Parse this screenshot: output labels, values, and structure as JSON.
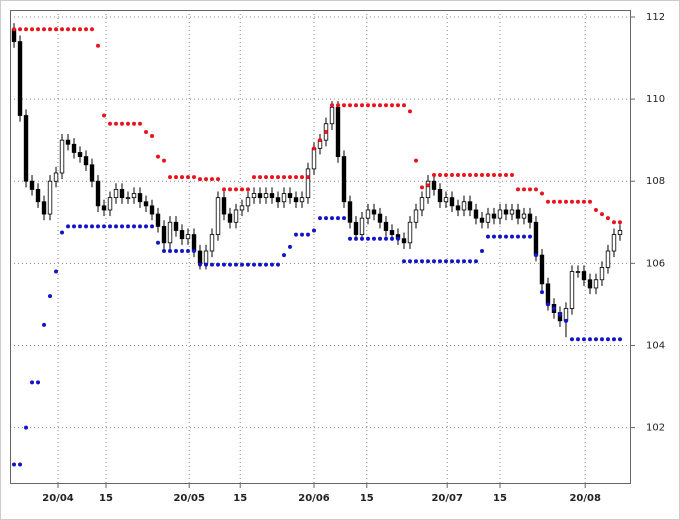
{
  "chart_data": {
    "type": "candlestick",
    "open": [
      111.7,
      111.4,
      109.6,
      108.0,
      107.8,
      107.5,
      107.2,
      108.0,
      108.2,
      109.0,
      108.9,
      108.7,
      108.6,
      108.4,
      108.0,
      107.4,
      107.3,
      107.6,
      107.8,
      107.6,
      107.6,
      107.7,
      107.5,
      107.4,
      107.2,
      106.9,
      106.5,
      107.0,
      106.8,
      106.6,
      106.7,
      106.3,
      106.0,
      106.3,
      106.7,
      107.6,
      107.2,
      107.0,
      107.3,
      107.4,
      107.6,
      107.7,
      107.6,
      107.7,
      107.6,
      107.5,
      107.7,
      107.6,
      107.5,
      107.6,
      108.3,
      108.8,
      109.0,
      109.4,
      109.8,
      108.6,
      107.5,
      107.0,
      106.7,
      107.1,
      107.3,
      107.2,
      107.0,
      106.8,
      106.7,
      106.6,
      106.5,
      107.0,
      107.3,
      107.6,
      108.0,
      107.8,
      107.5,
      107.6,
      107.4,
      107.3,
      107.5,
      107.3,
      107.1,
      107.0,
      107.2,
      107.1,
      107.3,
      107.2,
      107.3,
      107.1,
      107.2,
      107.0,
      106.2,
      105.5,
      105.0,
      104.8,
      104.6,
      104.9,
      105.8,
      105.8,
      105.6,
      105.4,
      105.6,
      105.9,
      106.3,
      106.7
    ],
    "high": [
      111.85,
      111.55,
      109.75,
      108.15,
      107.95,
      107.65,
      108.15,
      108.35,
      109.15,
      109.15,
      109.05,
      108.85,
      108.75,
      108.55,
      108.15,
      107.55,
      107.75,
      107.95,
      107.95,
      107.75,
      107.85,
      107.85,
      107.65,
      107.55,
      107.35,
      107.05,
      107.15,
      107.15,
      106.95,
      106.85,
      106.85,
      106.45,
      106.45,
      106.85,
      107.75,
      107.75,
      107.35,
      107.45,
      107.55,
      107.75,
      107.85,
      107.85,
      107.85,
      107.85,
      107.75,
      107.85,
      107.85,
      107.75,
      107.75,
      108.45,
      108.95,
      109.15,
      109.55,
      109.95,
      109.95,
      108.75,
      107.65,
      107.15,
      107.25,
      107.45,
      107.45,
      107.35,
      107.15,
      106.95,
      106.85,
      106.75,
      107.15,
      107.45,
      107.75,
      108.15,
      108.15,
      107.95,
      107.75,
      107.75,
      107.55,
      107.65,
      107.65,
      107.45,
      107.25,
      107.35,
      107.35,
      107.45,
      107.45,
      107.45,
      107.45,
      107.35,
      107.35,
      107.15,
      106.35,
      105.65,
      105.15,
      104.95,
      105.05,
      105.95,
      105.95,
      105.95,
      105.75,
      105.75,
      106.05,
      106.45,
      106.85,
      106.95
    ],
    "low": [
      111.25,
      109.45,
      107.85,
      107.65,
      107.35,
      107.05,
      107.05,
      107.85,
      108.05,
      108.75,
      108.55,
      108.45,
      108.25,
      107.85,
      107.25,
      107.15,
      107.15,
      107.45,
      107.45,
      107.45,
      107.45,
      107.35,
      107.25,
      107.05,
      106.75,
      106.35,
      106.35,
      106.65,
      106.45,
      106.45,
      106.15,
      105.85,
      105.85,
      106.15,
      106.55,
      107.05,
      106.85,
      106.85,
      107.15,
      107.25,
      107.45,
      107.45,
      107.45,
      107.45,
      107.35,
      107.35,
      107.45,
      107.35,
      107.35,
      107.45,
      108.15,
      108.65,
      108.85,
      109.25,
      108.45,
      107.35,
      106.85,
      106.55,
      106.55,
      106.95,
      107.05,
      106.85,
      106.65,
      106.55,
      106.45,
      106.35,
      106.35,
      106.85,
      107.15,
      107.45,
      107.65,
      107.35,
      107.35,
      107.25,
      107.15,
      107.15,
      107.15,
      106.95,
      106.85,
      106.85,
      106.95,
      106.95,
      107.05,
      107.05,
      106.95,
      106.95,
      106.85,
      106.05,
      105.35,
      104.85,
      104.65,
      104.45,
      104.2,
      104.75,
      105.65,
      105.45,
      105.25,
      105.25,
      105.45,
      105.75,
      106.15,
      106.55
    ],
    "close": [
      111.4,
      109.6,
      108.0,
      107.8,
      107.5,
      107.2,
      108.0,
      108.2,
      109.0,
      108.9,
      108.7,
      108.6,
      108.4,
      108.0,
      107.4,
      107.3,
      107.6,
      107.8,
      107.6,
      107.6,
      107.7,
      107.5,
      107.4,
      107.2,
      106.9,
      106.5,
      107.0,
      106.8,
      106.6,
      106.7,
      106.3,
      106.0,
      106.3,
      106.7,
      107.6,
      107.2,
      107.0,
      107.3,
      107.4,
      107.6,
      107.7,
      107.6,
      107.7,
      107.6,
      107.5,
      107.7,
      107.6,
      107.5,
      107.6,
      108.3,
      108.8,
      109.0,
      109.4,
      109.8,
      108.6,
      107.5,
      107.0,
      106.7,
      107.1,
      107.3,
      107.2,
      107.0,
      106.8,
      106.7,
      106.6,
      106.5,
      107.0,
      107.3,
      107.6,
      108.0,
      107.8,
      107.5,
      107.6,
      107.4,
      107.3,
      107.5,
      107.3,
      107.1,
      107.0,
      107.2,
      107.1,
      107.3,
      107.2,
      107.3,
      107.1,
      107.2,
      107.0,
      106.2,
      105.5,
      105.0,
      104.8,
      104.6,
      104.9,
      105.8,
      105.8,
      105.6,
      105.4,
      105.6,
      105.9,
      106.3,
      106.7,
      106.8
    ],
    "series": [
      {
        "color": "#e8141e",
        "values": [
          111.7,
          111.7,
          111.7,
          111.7,
          111.7,
          111.7,
          111.7,
          111.7,
          111.7,
          111.7,
          111.7,
          111.7,
          111.7,
          111.7,
          111.3,
          109.6,
          109.4,
          109.4,
          109.4,
          109.4,
          109.4,
          109.4,
          109.2,
          109.1,
          108.6,
          108.5,
          108.1,
          108.1,
          108.1,
          108.1,
          108.1,
          108.05,
          108.05,
          108.05,
          108.05,
          107.8,
          107.8,
          107.8,
          107.8,
          107.8,
          108.1,
          108.1,
          108.1,
          108.1,
          108.1,
          108.1,
          108.1,
          108.1,
          108.1,
          108.1,
          108.8,
          109.0,
          109.2,
          109.85,
          109.85,
          109.85,
          109.85,
          109.85,
          109.85,
          109.85,
          109.85,
          109.85,
          109.85,
          109.85,
          109.85,
          109.85,
          109.7,
          108.5,
          107.85,
          107.9,
          108.15,
          108.15,
          108.15,
          108.15,
          108.15,
          108.15,
          108.15,
          108.15,
          108.15,
          108.15,
          108.15,
          108.15,
          108.15,
          108.15,
          107.8,
          107.8,
          107.8,
          107.8,
          107.7,
          107.5,
          107.5,
          107.5,
          107.5,
          107.5,
          107.5,
          107.5,
          107.5,
          107.3,
          107.2,
          107.1,
          107.0,
          107.0
        ]
      },
      {
        "color": "#1414c8",
        "values": [
          101.1,
          101.1,
          102.0,
          103.1,
          103.1,
          104.5,
          105.2,
          105.8,
          106.75,
          106.9,
          106.9,
          106.9,
          106.9,
          106.9,
          106.9,
          106.9,
          106.9,
          106.9,
          106.9,
          106.9,
          106.9,
          106.9,
          106.9,
          106.9,
          106.5,
          106.3,
          106.3,
          106.3,
          106.3,
          106.3,
          106.3,
          105.97,
          105.97,
          105.97,
          105.97,
          105.97,
          105.97,
          105.97,
          105.97,
          105.97,
          105.97,
          105.97,
          105.97,
          105.97,
          105.97,
          106.2,
          106.4,
          106.7,
          106.7,
          106.7,
          106.8,
          107.1,
          107.1,
          107.1,
          107.1,
          107.1,
          106.6,
          106.6,
          106.6,
          106.6,
          106.6,
          106.6,
          106.6,
          106.6,
          106.6,
          106.05,
          106.05,
          106.05,
          106.05,
          106.05,
          106.05,
          106.05,
          106.05,
          106.05,
          106.05,
          106.05,
          106.05,
          106.05,
          106.3,
          106.65,
          106.65,
          106.65,
          106.65,
          106.65,
          106.65,
          106.65,
          106.65,
          106.2,
          105.3,
          105.0,
          104.9,
          104.75,
          104.6,
          104.15,
          104.15,
          104.15,
          104.15,
          104.15,
          104.15,
          104.15,
          104.15,
          104.15
        ]
      }
    ],
    "xlim": [
      -0.67,
      102.67
    ],
    "xticks": [
      {
        "value": 7.33,
        "label": "20/04"
      },
      {
        "value": 15.33,
        "label": "15"
      },
      {
        "value": 29.2,
        "label": "20/05"
      },
      {
        "value": 37.7,
        "label": "15"
      },
      {
        "value": 50,
        "label": "20/06"
      },
      {
        "value": 58.8,
        "label": "15"
      },
      {
        "value": 72.2,
        "label": "20/07"
      },
      {
        "value": 81,
        "label": "15"
      },
      {
        "value": 95.2,
        "label": "20/08"
      }
    ],
    "ylim": [
      100.65,
      112.17
    ],
    "yticks": [
      102,
      104,
      106,
      108,
      110,
      112
    ],
    "grid": true,
    "up_color": "#ffffff",
    "down_color": "#000000"
  }
}
